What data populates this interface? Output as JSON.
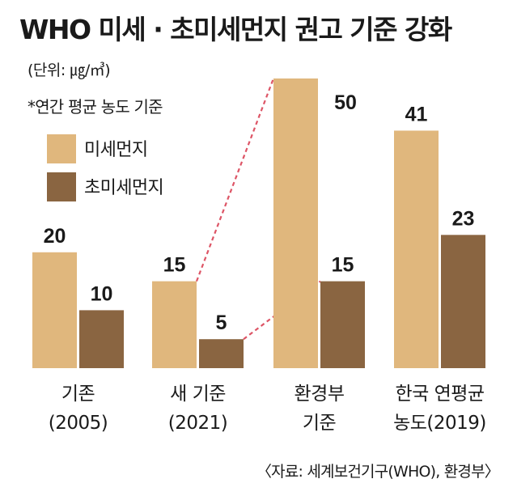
{
  "title": "WHO 미세 · 초미세먼지 권고 기준 강화",
  "unit": "(단위: ㎍/㎥)",
  "note": "*연간 평균 농도 기준",
  "source": "〈자료: 세계보건기구(WHO), 환경부〉",
  "colors": {
    "pm10": "#e0b77d",
    "pm25": "#8a6541",
    "connector": "#dd5566"
  },
  "chart_data": {
    "type": "bar",
    "categories": [
      "기존 (2005)",
      "새 기준 (2021)",
      "환경부 기준",
      "한국 연평균 농도(2019)"
    ],
    "category_lines": [
      [
        "기존",
        "(2005)"
      ],
      [
        "새 기준",
        "(2021)"
      ],
      [
        "환경부",
        "기준"
      ],
      [
        "한국 연평균",
        "농도(2019)"
      ]
    ],
    "series": [
      {
        "name": "미세먼지",
        "values": [
          20,
          15,
          50,
          41
        ]
      },
      {
        "name": "초미세먼지",
        "values": [
          10,
          5,
          15,
          23
        ]
      }
    ],
    "ylim": [
      0,
      50
    ],
    "legend_position": "top-left",
    "annotations": "dashed red connectors from new WHO standard bars to Ministry of Environment standard bars"
  }
}
